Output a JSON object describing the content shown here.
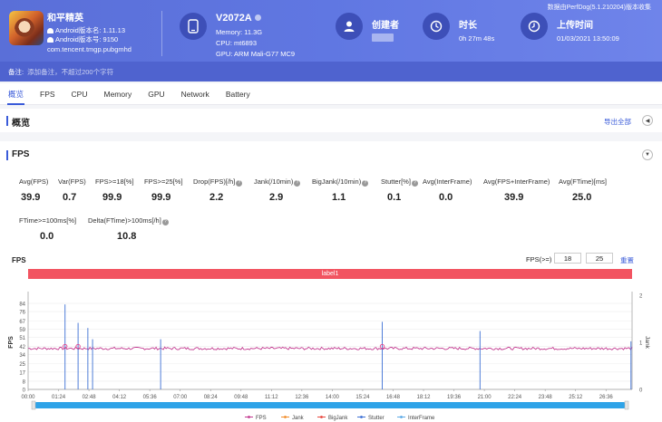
{
  "header": {
    "notice": "数据由PerfDog(5.1.210204)版本收集",
    "app": {
      "name": "和平精英",
      "version": "Android版本名: 1.11.13",
      "code": "Android版本号: 9150",
      "package": "com.tencent.tmgp.pubgmhd",
      "icon": "game-app-icon"
    },
    "device": {
      "name": "V2072A",
      "memory": "Memory: 11.3G",
      "cpu": "CPU: mt6893",
      "gpu": "GPU: ARM Mali-G77 MC9",
      "icon": "phone-icon"
    },
    "creator": {
      "label": "创建者",
      "icon": "user-icon"
    },
    "duration": {
      "label": "时长",
      "value": "0h 27m 48s",
      "icon": "clock-icon"
    },
    "upload": {
      "label": "上传时间",
      "value": "01/03/2021 13:50:09",
      "icon": "upload-clock-icon"
    },
    "remark": {
      "label": "备注:",
      "placeholder": "添加备注，不超过200个字符"
    }
  },
  "tabs": [
    "概览",
    "FPS",
    "CPU",
    "Memory",
    "GPU",
    "Network",
    "Battery"
  ],
  "overview": {
    "title": "概览",
    "export": "导出全部"
  },
  "fps": {
    "title": "FPS",
    "metrics": [
      {
        "label": "Avg(FPS)",
        "value": "39.9"
      },
      {
        "label": "Var(FPS)",
        "value": "0.7"
      },
      {
        "label": "FPS>=18[%]",
        "value": "99.9"
      },
      {
        "label": "FPS>=25[%]",
        "value": "99.9"
      },
      {
        "label": "Drop(FPS)[/h]",
        "value": "2.2"
      },
      {
        "label": "Jank(/10min)",
        "value": "2.9"
      },
      {
        "label": "BigJank(/10min)",
        "value": "1.1"
      },
      {
        "label": "Stutter[%]",
        "value": "0.1"
      },
      {
        "label": "Avg(InterFrame)",
        "value": "0.0"
      },
      {
        "label": "Avg(FPS+InterFrame)",
        "value": "39.9"
      },
      {
        "label": "Avg(FTime)[ms]",
        "value": "25.0"
      },
      {
        "label": "FTime>=100ms[%]",
        "value": "0.0"
      },
      {
        "label": "Delta(FTime)>100ms[/h]",
        "value": "10.8"
      }
    ],
    "chart_title": "FPS",
    "threshold_label": "FPS(>=)",
    "threshold_1": "18",
    "threshold_2": "25",
    "reset": "重置",
    "band_label": "label1"
  },
  "chart_data": {
    "type": "line",
    "ylabel": "FPS",
    "y2label": "Jank",
    "yticks": [
      0,
      8,
      17,
      25,
      34,
      42,
      51,
      59,
      67,
      76,
      84
    ],
    "ylim": [
      0,
      92
    ],
    "y2ticks": [
      0,
      1,
      2
    ],
    "y2lim": [
      0,
      2
    ],
    "x_range_seconds": [
      0,
      1668
    ],
    "xticks": [
      "00:00",
      "01:24",
      "02:48",
      "04:12",
      "05:36",
      "07:00",
      "08:24",
      "09:48",
      "11:12",
      "12:36",
      "14:00",
      "15:24",
      "16:48",
      "18:12",
      "19:36",
      "21:00",
      "22:24",
      "23:48",
      "25:12",
      "26:36"
    ],
    "series": [
      {
        "name": "FPS",
        "baseline": 40,
        "color": "#c2388f"
      },
      {
        "name": "Jank",
        "color": "#f28c28"
      },
      {
        "name": "BigJank",
        "color": "#e8453c"
      },
      {
        "name": "Stutter",
        "color": "#3b6fd4"
      },
      {
        "name": "InterFrame",
        "color": "#5aa9e6"
      }
    ],
    "fps_spikes": [
      {
        "t": 102,
        "fps": 83
      },
      {
        "t": 138,
        "fps": 65
      },
      {
        "t": 165,
        "fps": 60
      },
      {
        "t": 178,
        "fps": 49
      },
      {
        "t": 366,
        "fps": 49
      },
      {
        "t": 978,
        "fps": 66
      },
      {
        "t": 1248,
        "fps": 57
      },
      {
        "t": 1665,
        "fps": 47
      }
    ],
    "jank_markers_seconds": [
      102,
      138,
      978
    ]
  }
}
